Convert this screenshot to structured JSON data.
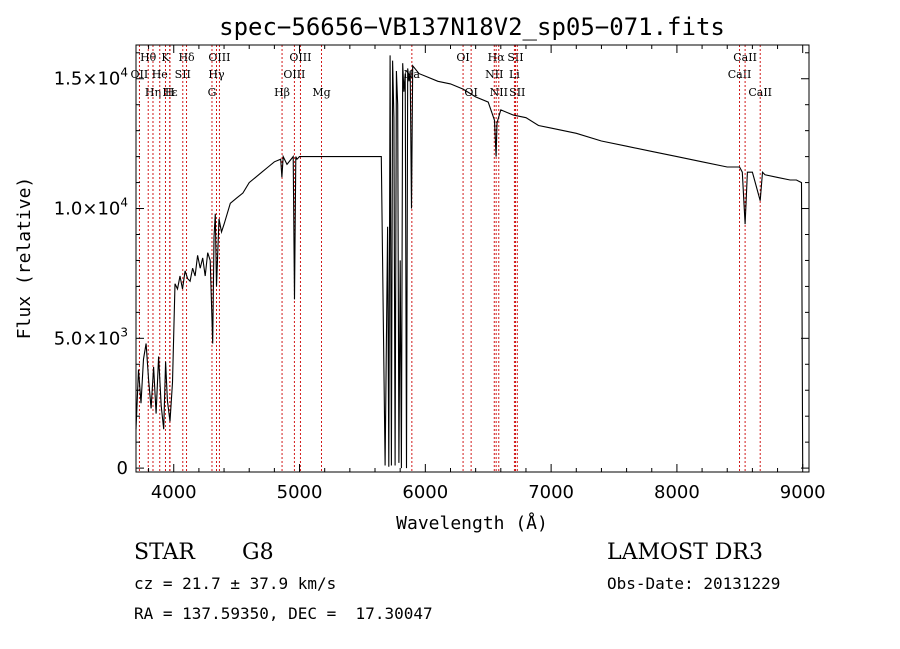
{
  "chart_data": {
    "type": "line",
    "title": "spec−56656−VB137N18V2_sp05−071.fits",
    "xlabel": "Wavelength (Å)",
    "ylabel": "Flux (relative)",
    "xlim": [
      3700,
      9050
    ],
    "ylim": [
      -150,
      16300
    ],
    "x_ticks": [
      {
        "value": 4000,
        "label": "4000"
      },
      {
        "value": 5000,
        "label": "5000"
      },
      {
        "value": 6000,
        "label": "6000"
      },
      {
        "value": 7000,
        "label": "7000"
      },
      {
        "value": 8000,
        "label": "8000"
      },
      {
        "value": 9000,
        "label": "9000"
      }
    ],
    "y_ticks": [
      {
        "value": 0,
        "mant": "0",
        "exp": ""
      },
      {
        "value": 5000,
        "mant": "5.0×10",
        "exp": "3"
      },
      {
        "value": 10000,
        "mant": "1.0×10",
        "exp": "4"
      },
      {
        "value": 15000,
        "mant": "1.5×10",
        "exp": "4"
      }
    ],
    "grid": false,
    "line_color": "#000000",
    "marker_color": "#cc0000",
    "series": [
      {
        "x": [
          3700,
          3720,
          3740,
          3760,
          3780,
          3800,
          3820,
          3840,
          3860,
          3880,
          3900,
          3920,
          3935,
          3950,
          3970,
          3990,
          4010,
          4030,
          4050,
          4070,
          4090,
          4110,
          4130,
          4150,
          4170,
          4190,
          4210,
          4230,
          4250,
          4270,
          4290,
          4310,
          4320,
          4330,
          4340,
          4360,
          4380,
          4400,
          4450,
          4500,
          4550,
          4600,
          4650,
          4700,
          4750,
          4800,
          4850,
          4860,
          4870,
          4900,
          4950,
          4960,
          4970,
          4980,
          5000,
          5050,
          5100,
          5150,
          5200,
          5250,
          5300,
          5350,
          5400,
          5450,
          5500,
          5550,
          5600,
          5650,
          5680,
          5700,
          5710,
          5720,
          5730,
          5740,
          5750,
          5760,
          5770,
          5780,
          5790,
          5800,
          5810,
          5820,
          5830,
          5840,
          5850,
          5860,
          5870,
          5880,
          5890,
          5900,
          5950,
          6000,
          6100,
          6200,
          6300,
          6400,
          6500,
          6550,
          6563,
          6570,
          6600,
          6700,
          6800,
          6900,
          7000,
          7200,
          7400,
          7600,
          7800,
          8000,
          8200,
          8400,
          8498,
          8520,
          8542,
          8560,
          8600,
          8662,
          8680,
          8700,
          8800,
          8900,
          8950,
          8990,
          9000
        ],
        "y": [
          1500,
          3800,
          2500,
          4200,
          4800,
          3400,
          2300,
          3900,
          2100,
          4300,
          2400,
          1500,
          4100,
          2600,
          1800,
          3300,
          7100,
          6900,
          7400,
          6900,
          7600,
          7300,
          7200,
          7700,
          7400,
          8200,
          7700,
          8100,
          7400,
          8300,
          8000,
          4800,
          8900,
          9800,
          7000,
          9600,
          9100,
          9400,
          10200,
          10400,
          10600,
          11000,
          11200,
          11400,
          11600,
          11800,
          11900,
          11200,
          12000,
          11700,
          12000,
          6500,
          12000,
          11900,
          12000,
          12000,
          12000,
          12000,
          12000,
          12000,
          12000,
          12000,
          12000,
          12000,
          12000,
          12000,
          12000,
          12000,
          100,
          9300,
          50,
          15900,
          100,
          15700,
          13500,
          100,
          15300,
          14000,
          200,
          8000,
          0,
          15600,
          14500,
          15200,
          0,
          15400,
          14900,
          15300,
          10000,
          15500,
          15200,
          15100,
          14900,
          14800,
          14600,
          14300,
          14100,
          13400,
          12000,
          13300,
          13800,
          13600,
          13500,
          13200,
          13100,
          12900,
          12600,
          12400,
          12200,
          12000,
          11800,
          11600,
          11600,
          11400,
          9400,
          11400,
          11400,
          10300,
          11400,
          11300,
          11200,
          11100,
          11100,
          11000,
          0
        ]
      }
    ],
    "lines": [
      {
        "name": "Hθ",
        "x": 3797,
        "row": 0
      },
      {
        "name": "OII",
        "x": 3727,
        "row": 1
      },
      {
        "name": "Hη",
        "x": 3835,
        "row": 2
      },
      {
        "name": "He",
        "x": 3889,
        "row": 1
      },
      {
        "name": "Hε",
        "x": 3970,
        "row": 2
      },
      {
        "name": "K",
        "x": 3934,
        "row": 0
      },
      {
        "name": "H",
        "x": 3968,
        "row": 2
      },
      {
        "name": "Hδ",
        "x": 4102,
        "row": 0
      },
      {
        "name": "SII",
        "x": 4072,
        "row": 1
      },
      {
        "name": "OIII",
        "x": 4363,
        "row": 0
      },
      {
        "name": "Hγ",
        "x": 4340,
        "row": 1
      },
      {
        "name": "G",
        "x": 4304,
        "row": 2
      },
      {
        "name": "Hβ",
        "x": 4861,
        "row": 2
      },
      {
        "name": "OIII",
        "x": 4959,
        "row": 1
      },
      {
        "name": "OIII",
        "x": 5007,
        "row": 0
      },
      {
        "name": "Mg",
        "x": 5175,
        "row": 2
      },
      {
        "name": "Na",
        "x": 5893,
        "row": 1
      },
      {
        "name": "OI",
        "x": 6300,
        "row": 0
      },
      {
        "name": "OI",
        "x": 6364,
        "row": 2
      },
      {
        "name": "Hα",
        "x": 6563,
        "row": 0
      },
      {
        "name": "NII",
        "x": 6548,
        "row": 1
      },
      {
        "name": "NII",
        "x": 6584,
        "row": 2
      },
      {
        "name": "SII",
        "x": 6717,
        "row": 0
      },
      {
        "name": "Li",
        "x": 6708,
        "row": 1
      },
      {
        "name": "SII",
        "x": 6731,
        "row": 2
      },
      {
        "name": "CaII",
        "x": 8498,
        "row": 1
      },
      {
        "name": "CaII",
        "x": 8542,
        "row": 0
      },
      {
        "name": "CaII",
        "x": 8662,
        "row": 2
      }
    ]
  },
  "info": {
    "class": "STAR",
    "subclass": "G8",
    "survey": "LAMOST DR3",
    "cz": "cz = 21.7 ± 37.9 km/s",
    "obs_date": "Obs-Date: 20131229",
    "coords": "RA = 137.59350, DEC =  17.30047"
  }
}
